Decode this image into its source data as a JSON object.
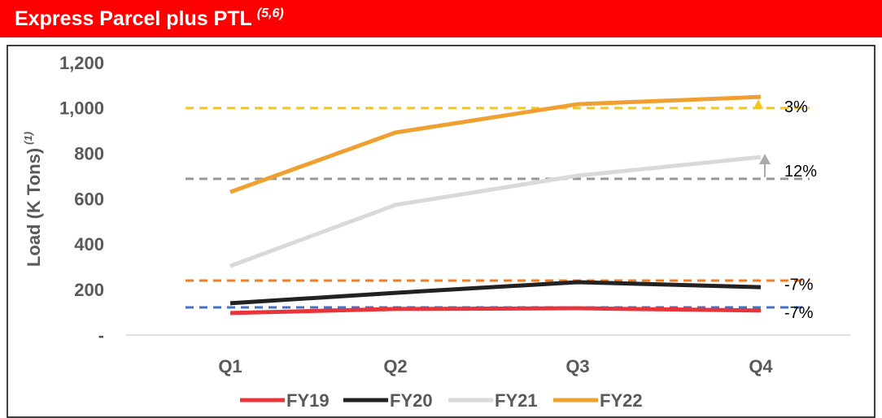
{
  "chart_data": {
    "type": "line",
    "title": "Express Parcel plus PTL",
    "title_note": "(5,6)",
    "y_label": "Load (K Tons)",
    "y_label_note": "(1)",
    "categories": [
      "Q1",
      "Q2",
      "Q3",
      "Q4"
    ],
    "series": [
      {
        "name": "FY19",
        "color": "#e8343a",
        "values": [
          97,
          115,
          118,
          108
        ]
      },
      {
        "name": "FY20",
        "color": "#222222",
        "values": [
          140,
          186,
          233,
          211
        ]
      },
      {
        "name": "FY21",
        "color": "#d9d9d9",
        "values": [
          304,
          573,
          702,
          784
        ]
      },
      {
        "name": "FY22",
        "color": "#f0a030",
        "values": [
          630,
          892,
          1017,
          1049
        ]
      }
    ],
    "reference_lines": [
      {
        "value": 1000,
        "color": "#f5c518",
        "label": "3%"
      },
      {
        "value": 688,
        "color": "#999999",
        "label": "12%"
      },
      {
        "value": 240,
        "color": "#ef7d22",
        "label": "-7%"
      },
      {
        "value": 122,
        "color": "#4472c4",
        "label": "-7%"
      }
    ],
    "ylim": [
      0,
      1200
    ],
    "yticks": [
      {
        "value": 0,
        "label": "-"
      },
      200,
      400,
      600,
      800,
      {
        "value": 1000,
        "label": "1,000"
      },
      {
        "value": 1200,
        "label": "1,200"
      }
    ],
    "legend": "bottom"
  }
}
